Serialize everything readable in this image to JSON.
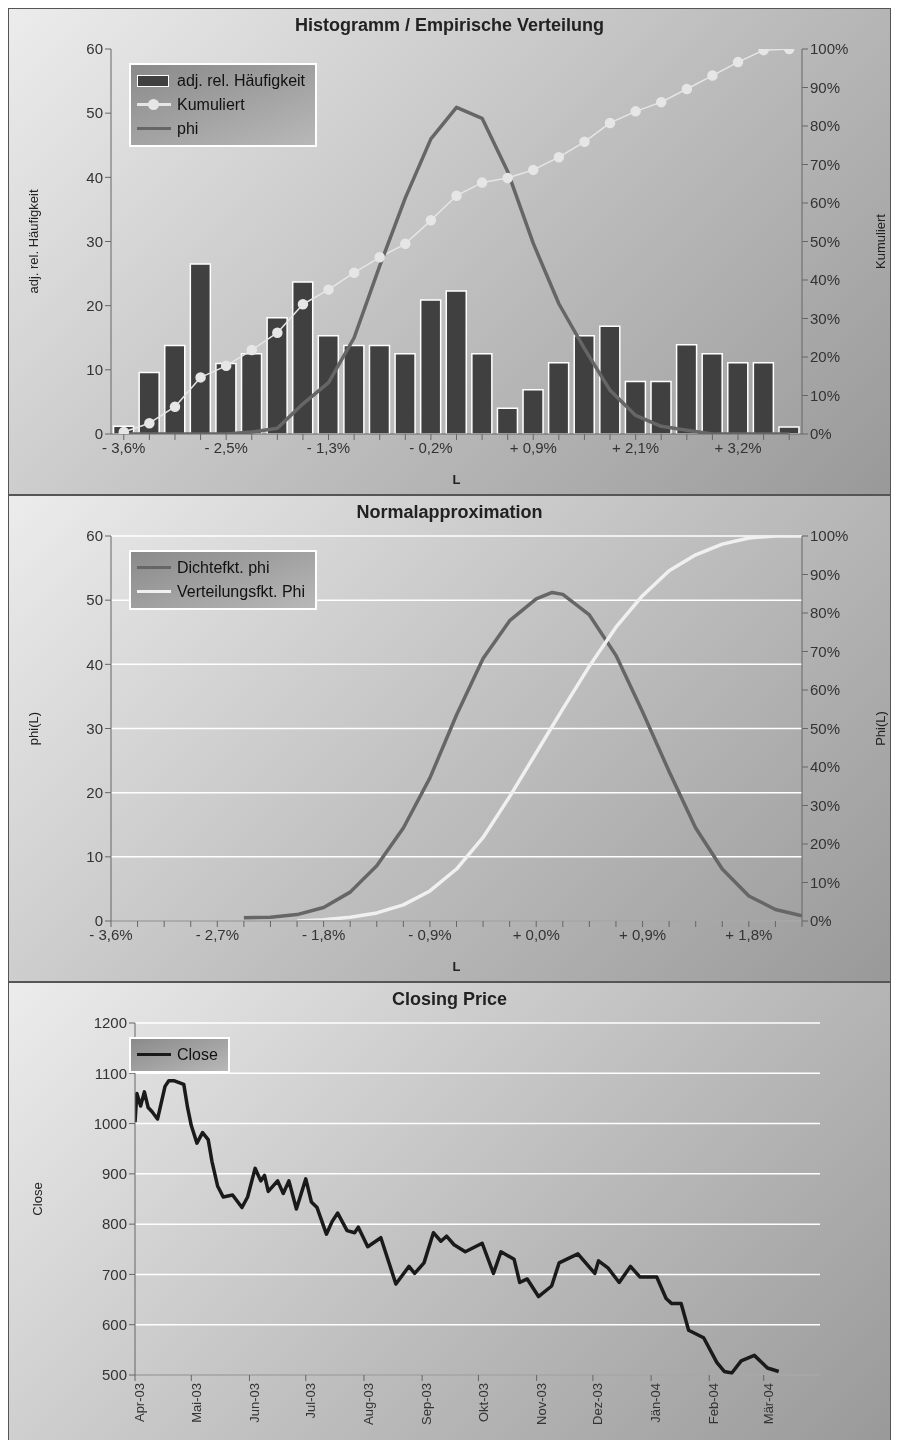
{
  "chart_data": [
    {
      "type": "bar",
      "title": "Histogramm / Empirische Verteilung",
      "xlabel": "L",
      "ylabel": "adj. rel. Häufigkeit",
      "y2label": "Kumuliert",
      "categories": [
        "- 3,6%",
        null,
        null,
        null,
        "- 2,5%",
        null,
        null,
        null,
        "- 1,3%",
        null,
        null,
        null,
        "- 0,2%",
        null,
        null,
        null,
        "+ 0,9%",
        null,
        null,
        null,
        "+ 2,1%",
        null,
        null,
        null,
        "+ 3,2%",
        null,
        null
      ],
      "series": [
        {
          "name": "adj. rel. Häufigkeit",
          "color": "#404040",
          "values": [
            1.2,
            9.6,
            13.8,
            26.5,
            11.0,
            12.5,
            18.1,
            23.7,
            15.3,
            13.8,
            13.8,
            12.5,
            20.9,
            22.3,
            12.5,
            4.0,
            6.9,
            11.1,
            15.3,
            16.8,
            8.2,
            8.2,
            13.9,
            12.5,
            11.1,
            11.1,
            1.1
          ]
        },
        {
          "name": "Kumuliert",
          "type": "line",
          "axis": "y2",
          "marker": "circle",
          "color": "#e6e6e6",
          "values": [
            0.5,
            2.8,
            7.1,
            14.7,
            17.7,
            21.8,
            26.3,
            33.7,
            37.5,
            41.9,
            45.9,
            49.4,
            55.5,
            61.9,
            65.3,
            66.5,
            68.6,
            71.9,
            75.9,
            80.8,
            83.8,
            86.2,
            89.6,
            93.1,
            96.6,
            99.7,
            100
          ]
        },
        {
          "name": "phi",
          "type": "line",
          "color": "#666666",
          "values": [
            0,
            0,
            0,
            0,
            0,
            0.3,
            0.9,
            4.7,
            8,
            15,
            26.2,
            36.8,
            46,
            50.9,
            49.2,
            40.9,
            29.7,
            20.3,
            13.3,
            6.8,
            2.9,
            1.2,
            0.6,
            0,
            0,
            0,
            0
          ]
        }
      ],
      "marker": "none",
      "ylim": [
        0,
        60
      ],
      "yticks": [
        0,
        10,
        20,
        30,
        40,
        50,
        60
      ],
      "y2lim": [
        0,
        100
      ],
      "y2ticks": [
        {
          "value": 0,
          "label": "0%"
        },
        {
          "value": 10,
          "label": "10%"
        },
        {
          "value": 20,
          "label": "20%"
        },
        {
          "value": 30,
          "label": "30%"
        },
        {
          "value": 40,
          "label": "40%"
        },
        {
          "value": 50,
          "label": "50%"
        },
        {
          "value": 60,
          "label": "60%"
        },
        {
          "value": 70,
          "label": "70%"
        },
        {
          "value": 80,
          "label": "80%"
        },
        {
          "value": 90,
          "label": "90%"
        },
        {
          "value": 100,
          "label": "100%"
        }
      ],
      "legend": "top left"
    },
    {
      "type": "line",
      "title": "Normalapproximation",
      "xlabel": "L",
      "ylabel": "phi(L)",
      "y2label": "Phi(L)",
      "series": [
        {
          "name": "Dichtefkt. phi",
          "color": "#666666",
          "x": [
            -2.475,
            -2.25,
            -2.025,
            -1.8,
            -1.575,
            -1.35,
            -1.125,
            -0.9,
            -0.675,
            -0.45,
            -0.225,
            0,
            0.135,
            0.225,
            0.45,
            0.675,
            0.9,
            1.125,
            1.35,
            1.575,
            1.8,
            2.025,
            2.25
          ],
          "values": [
            0.5,
            0.6,
            1.0,
            2.1,
            4.5,
            8.6,
            14.5,
            22.3,
            32.1,
            40.9,
            46.8,
            50.2,
            51.2,
            50.9,
            47.7,
            41.4,
            32.6,
            23.3,
            14.5,
            8.1,
            3.9,
            1.8,
            0.8
          ]
        },
        {
          "name": "Verteilungsfkt. Phi",
          "color": "#f0f0f0",
          "axis": "y2",
          "x": [
            -2.025,
            -1.8,
            -1.575,
            -1.35,
            -1.125,
            -0.9,
            -0.675,
            -0.45,
            -0.225,
            0,
            0.225,
            0.45,
            0.675,
            0.9,
            1.125,
            1.35,
            1.575,
            1.8,
            2.025,
            2.25
          ],
          "values": [
            0,
            0.3,
            1.0,
            2.1,
            4.2,
            7.8,
            13.5,
            21.7,
            32.3,
            43.7,
            55.1,
            66.2,
            76.3,
            84.5,
            91.0,
            95.1,
            97.9,
            99.5,
            100,
            100
          ]
        }
      ],
      "marker": "none",
      "xlim": [
        -3.6,
        2.25
      ],
      "xticks": [
        {
          "value": -3.6,
          "label": "- 3,6%"
        },
        {
          "value": -3.375,
          "label": null
        },
        {
          "value": -3.15,
          "label": null
        },
        {
          "value": -2.925,
          "label": null
        },
        {
          "value": -2.7,
          "label": "- 2,7%"
        },
        {
          "value": -2.475,
          "label": null
        },
        {
          "value": -2.25,
          "label": null
        },
        {
          "value": -2.025,
          "label": null
        },
        {
          "value": -1.8,
          "label": "- 1,8%"
        },
        {
          "value": -1.575,
          "label": null
        },
        {
          "value": -1.35,
          "label": null
        },
        {
          "value": -1.125,
          "label": null
        },
        {
          "value": -0.9,
          "label": "- 0,9%"
        },
        {
          "value": -0.675,
          "label": null
        },
        {
          "value": -0.45,
          "label": null
        },
        {
          "value": -0.225,
          "label": null
        },
        {
          "value": 0,
          "label": "+ 0,0%"
        },
        {
          "value": 0.225,
          "label": null
        },
        {
          "value": 0.45,
          "label": null
        },
        {
          "value": 0.675,
          "label": null
        },
        {
          "value": 0.9,
          "label": "+ 0,9%"
        },
        {
          "value": 1.125,
          "label": null
        },
        {
          "value": 1.35,
          "label": null
        },
        {
          "value": 1.575,
          "label": null
        },
        {
          "value": 1.8,
          "label": "+ 1,8%"
        },
        {
          "value": 2.025,
          "label": null
        },
        {
          "value": 2.25,
          "label": null
        }
      ],
      "ylim": [
        0,
        60
      ],
      "yticks": [
        0,
        10,
        20,
        30,
        40,
        50,
        60
      ],
      "y2lim": [
        0,
        100
      ],
      "y2ticks": [
        {
          "value": 0,
          "label": "0%"
        },
        {
          "value": 10,
          "label": "10%"
        },
        {
          "value": 20,
          "label": "20%"
        },
        {
          "value": 30,
          "label": "30%"
        },
        {
          "value": 40,
          "label": "40%"
        },
        {
          "value": 50,
          "label": "50%"
        },
        {
          "value": 60,
          "label": "60%"
        },
        {
          "value": 70,
          "label": "70%"
        },
        {
          "value": 80,
          "label": "80%"
        },
        {
          "value": 90,
          "label": "90%"
        },
        {
          "value": 100,
          "label": "100%"
        }
      ],
      "grid": "y",
      "legend": "top left"
    },
    {
      "type": "line",
      "title": "Closing Price",
      "ylabel": "Close",
      "x": [
        "2003-04-01",
        "2003-04-02",
        "2003-04-04",
        "2003-04-06",
        "2003-04-08",
        "2003-04-10",
        "2003-04-13",
        "2003-04-17",
        "2003-04-19",
        "2003-04-22",
        "2003-04-27",
        "2003-04-29",
        "2003-05-01",
        "2003-05-04",
        "2003-05-07",
        "2003-05-10",
        "2003-05-12",
        "2003-05-15",
        "2003-05-18",
        "2003-05-23",
        "2003-05-28",
        "2003-05-31",
        "2003-06-04",
        "2003-06-07",
        "2003-06-09",
        "2003-06-11",
        "2003-06-16",
        "2003-06-19",
        "2003-06-22",
        "2003-06-26",
        "2003-07-01",
        "2003-07-04",
        "2003-07-07",
        "2003-07-12",
        "2003-07-15",
        "2003-07-18",
        "2003-07-23",
        "2003-07-27",
        "2003-07-29",
        "2003-08-03",
        "2003-08-10",
        "2003-08-18",
        "2003-08-25",
        "2003-08-28",
        "2003-09-02",
        "2003-09-07",
        "2003-09-11",
        "2003-09-14",
        "2003-09-18",
        "2003-09-24",
        "2003-10-03",
        "2003-10-09",
        "2003-10-13",
        "2003-10-20",
        "2003-10-23",
        "2003-10-27",
        "2003-11-02",
        "2003-11-09",
        "2003-11-13",
        "2003-11-23",
        "2003-12-02",
        "2003-12-04",
        "2003-12-09",
        "2003-12-15",
        "2003-12-21",
        "2003-12-26",
        "2004-01-04",
        "2004-01-09",
        "2004-01-12",
        "2004-01-17",
        "2004-01-21",
        "2004-01-29",
        "2004-02-05",
        "2004-02-09",
        "2004-02-13",
        "2004-02-18",
        "2004-02-25",
        "2004-03-03",
        "2004-03-09"
      ],
      "series": [
        {
          "name": "Close",
          "color": "#1a1a1a",
          "values": [
            1003,
            1060,
            1035,
            1063,
            1032,
            1024,
            1009,
            1074,
            1085,
            1085,
            1078,
            1032,
            996,
            961,
            982,
            968,
            925,
            876,
            854,
            858,
            833,
            854,
            911,
            886,
            897,
            865,
            886,
            861,
            886,
            830,
            890,
            844,
            833,
            780,
            805,
            822,
            787,
            783,
            794,
            755,
            773,
            681,
            716,
            702,
            723,
            783,
            766,
            776,
            759,
            745,
            762,
            702,
            745,
            730,
            684,
            691,
            656,
            677,
            723,
            741,
            702,
            727,
            713,
            684,
            716,
            695,
            695,
            652,
            642,
            642,
            589,
            574,
            525,
            507,
            504,
            528,
            539,
            514,
            507
          ]
        }
      ],
      "marker": "none",
      "xlim": [
        "2003-04-01",
        "2004-03-31"
      ],
      "xticks": [
        {
          "value": "2003-04-01",
          "label": "Apr-03"
        },
        {
          "value": "2003-05-01",
          "label": "Mai-03"
        },
        {
          "value": "2003-06-01",
          "label": "Jun-03"
        },
        {
          "value": "2003-07-01",
          "label": "Jul-03"
        },
        {
          "value": "2003-08-01",
          "label": "Aug-03"
        },
        {
          "value": "2003-09-01",
          "label": "Sep-03"
        },
        {
          "value": "2003-10-01",
          "label": "Okt-03"
        },
        {
          "value": "2003-11-01",
          "label": "Nov-03"
        },
        {
          "value": "2003-12-01",
          "label": "Dez-03"
        },
        {
          "value": "2004-01-01",
          "label": "Jän-04"
        },
        {
          "value": "2004-02-01",
          "label": "Feb-04"
        },
        {
          "value": "2004-03-01",
          "label": "Mär-04"
        }
      ],
      "ylim": [
        500,
        1200
      ],
      "yticks": [
        500,
        600,
        700,
        800,
        900,
        1000,
        1100,
        1200
      ],
      "grid": "y",
      "legend": "top left"
    }
  ]
}
